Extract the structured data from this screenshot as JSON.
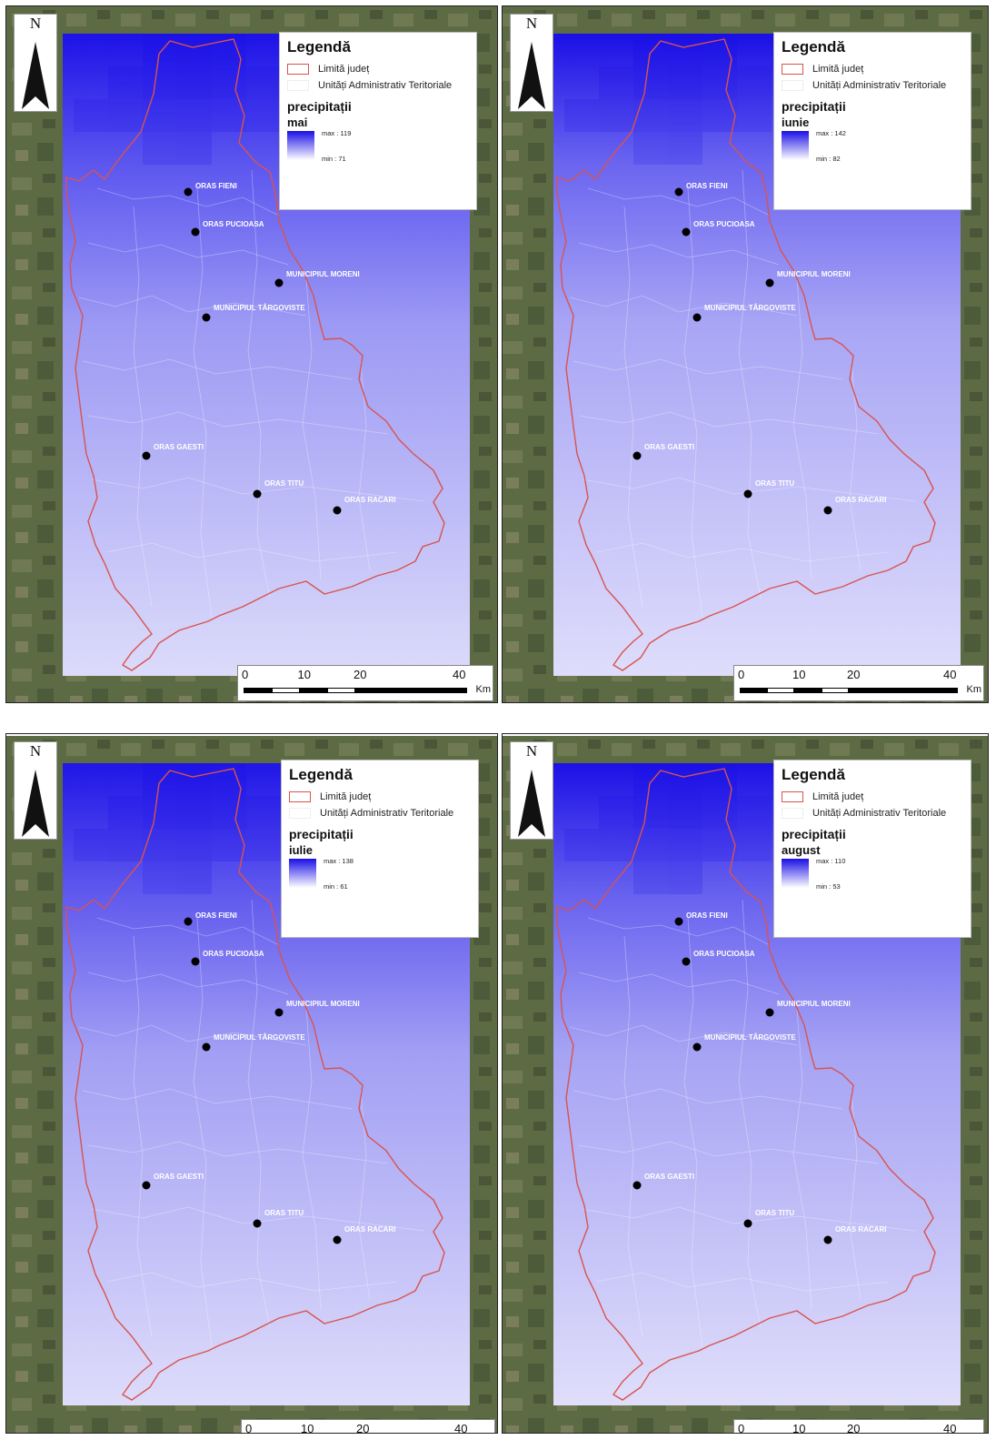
{
  "panels": [
    {
      "month": "mai",
      "max": "max : 119",
      "min": "min : 71"
    },
    {
      "month": "iunie",
      "max": "max : 142",
      "min": "min : 82"
    },
    {
      "month": "iulie",
      "max": "max : 138",
      "min": "min : 61"
    },
    {
      "month": "august",
      "max": "max : 110",
      "min": "min : 53"
    }
  ],
  "legend": {
    "title": "Legendă",
    "county_limit": "Limită județ",
    "uat": "Unități Administrativ Teritoriale",
    "variable": "precipitații"
  },
  "north_letter": "N",
  "scale": {
    "ticks": [
      "0",
      "10",
      "20",
      "40"
    ],
    "unit": "Km"
  },
  "cities": [
    "ORAS FIENI",
    "ORAS PUCIOASA",
    "MUNICIPIUL  MORENI",
    "MUNICIPIUL TÂRGOVISTE",
    "ORAS GAESTI",
    "ORAS TITU",
    "ORAS RACARI"
  ],
  "colors": {
    "boundary": "#d9534f",
    "precip_high": "#1a0fe6",
    "precip_low": "#e2e0fb",
    "satellite_bg": "#5d6b45"
  }
}
